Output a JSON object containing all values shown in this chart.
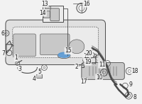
{
  "bg_color": "#f2f2f2",
  "line_color": "#4a4a4a",
  "fill_color": "#e0e0e0",
  "fill_dark": "#c8c8c8",
  "fill_light": "#ebebeb",
  "blue_color": "#5b9bd5",
  "text_color": "#222222",
  "figsize": [
    2.0,
    1.47
  ],
  "dpi": 100
}
